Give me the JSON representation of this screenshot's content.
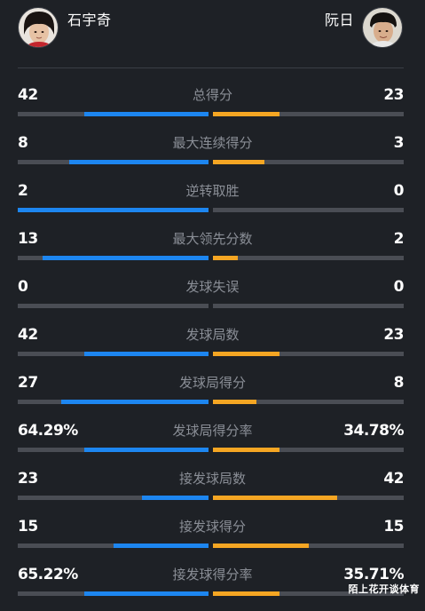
{
  "players": {
    "left": {
      "name": "石宇奇"
    },
    "right": {
      "name": "阮日"
    }
  },
  "colors": {
    "background": "#1e2126",
    "left_bar": "#1d86f0",
    "right_bar": "#f5a623",
    "track": "#4a4d54"
  },
  "stats": [
    {
      "label": "总得分",
      "left": "42",
      "right": "23",
      "left_share": 0.65,
      "right_share": 0.35
    },
    {
      "label": "最大连续得分",
      "left": "8",
      "right": "3",
      "left_share": 0.73,
      "right_share": 0.27
    },
    {
      "label": "逆转取胜",
      "left": "2",
      "right": "0",
      "left_share": 1.0,
      "right_share": 0.0
    },
    {
      "label": "最大领先分数",
      "left": "13",
      "right": "2",
      "left_share": 0.87,
      "right_share": 0.13
    },
    {
      "label": "发球失误",
      "left": "0",
      "right": "0",
      "left_share": 0.0,
      "right_share": 0.0
    },
    {
      "label": "发球局数",
      "left": "42",
      "right": "23",
      "left_share": 0.65,
      "right_share": 0.35
    },
    {
      "label": "发球局得分",
      "left": "27",
      "right": "8",
      "left_share": 0.77,
      "right_share": 0.23
    },
    {
      "label": "发球局得分率",
      "left": "64.29%",
      "right": "34.78%",
      "left_share": 0.65,
      "right_share": 0.35
    },
    {
      "label": "接发球局数",
      "left": "23",
      "right": "42",
      "left_share": 0.35,
      "right_share": 0.65
    },
    {
      "label": "接发球得分",
      "left": "15",
      "right": "15",
      "left_share": 0.5,
      "right_share": 0.5
    },
    {
      "label": "接发球得分率",
      "left": "65.22%",
      "right": "35.71%",
      "left_share": 0.65,
      "right_share": 0.35
    }
  ],
  "watermark": "陌上花开谈体育"
}
